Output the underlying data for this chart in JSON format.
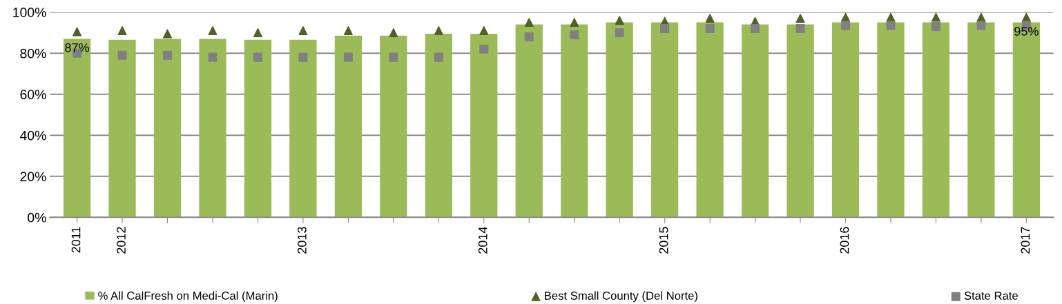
{
  "chart_data": {
    "type": "bar",
    "categories": [
      "2011",
      "2012",
      null,
      null,
      null,
      "2013",
      null,
      null,
      null,
      "2014",
      null,
      null,
      null,
      "2015",
      null,
      null,
      null,
      "2016",
      null,
      null,
      null,
      "2017"
    ],
    "ylim": [
      0,
      100
    ],
    "yticks": [
      {
        "value": 0,
        "label": "0%"
      },
      {
        "value": 20,
        "label": "20%"
      },
      {
        "value": 40,
        "label": "40%"
      },
      {
        "value": 60,
        "label": "60%"
      },
      {
        "value": 80,
        "label": "80%"
      },
      {
        "value": 100,
        "label": "100%"
      }
    ],
    "grid": "y",
    "legend": "bottom",
    "series": [
      {
        "name": "% All CalFresh on Medi-Cal (Marin)",
        "color": "#9bbb59",
        "values": [
          87,
          86.5,
          87,
          87,
          86.5,
          86.5,
          88.5,
          88.5,
          89.5,
          89.5,
          94,
          94,
          95,
          95,
          95,
          94,
          94,
          95,
          95,
          95,
          95,
          95
        ],
        "value_labels": [
          "87%",
          null,
          null,
          null,
          null,
          null,
          null,
          null,
          null,
          null,
          null,
          null,
          null,
          null,
          null,
          null,
          null,
          null,
          null,
          null,
          null,
          "95%"
        ]
      },
      {
        "name": "Best Small County (Del Norte)",
        "type": "scatter",
        "marker": "triangle",
        "color": "#4f6228",
        "values": [
          90.5,
          91,
          89.5,
          91,
          90,
          91,
          91,
          90,
          91,
          91,
          95,
          95,
          96,
          95.5,
          97,
          95.5,
          97,
          97.5,
          97.5,
          97.5,
          97.5,
          97.5
        ]
      },
      {
        "name": "State Rate",
        "type": "scatter",
        "marker": "square",
        "color": "#808080",
        "values": [
          80,
          79,
          79,
          78,
          78,
          78,
          78,
          78,
          78,
          82,
          88,
          89,
          90,
          92,
          92,
          92,
          92,
          93.5,
          93.5,
          93,
          93.5,
          93.5
        ]
      }
    ]
  }
}
